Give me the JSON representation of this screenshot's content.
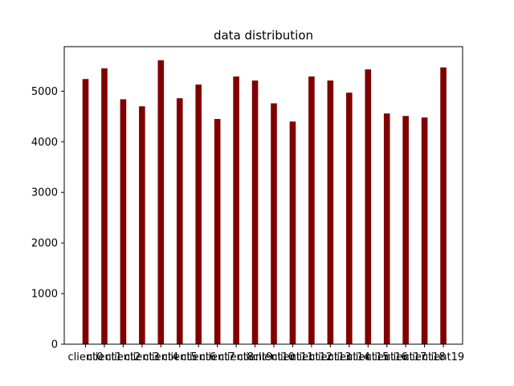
{
  "chart_data": {
    "type": "bar",
    "title": "data distribution",
    "xlabel": "",
    "ylabel": "",
    "categories": [
      "client0",
      "client1",
      "client2",
      "client3",
      "client4",
      "client5",
      "client6",
      "client7",
      "client8",
      "client9",
      "client10",
      "client11",
      "client12",
      "client13",
      "client14",
      "client15",
      "client16",
      "client17",
      "client18",
      "client19"
    ],
    "values": [
      5240,
      5450,
      4840,
      4700,
      5610,
      4860,
      5130,
      4450,
      5290,
      5210,
      4760,
      4400,
      5290,
      5210,
      4970,
      5430,
      4560,
      4510,
      4480,
      5470
    ],
    "ylim": [
      0,
      5880
    ],
    "yticks": [
      0,
      1000,
      2000,
      3000,
      4000,
      5000
    ],
    "bar_color": "#800000",
    "grid": false
  }
}
